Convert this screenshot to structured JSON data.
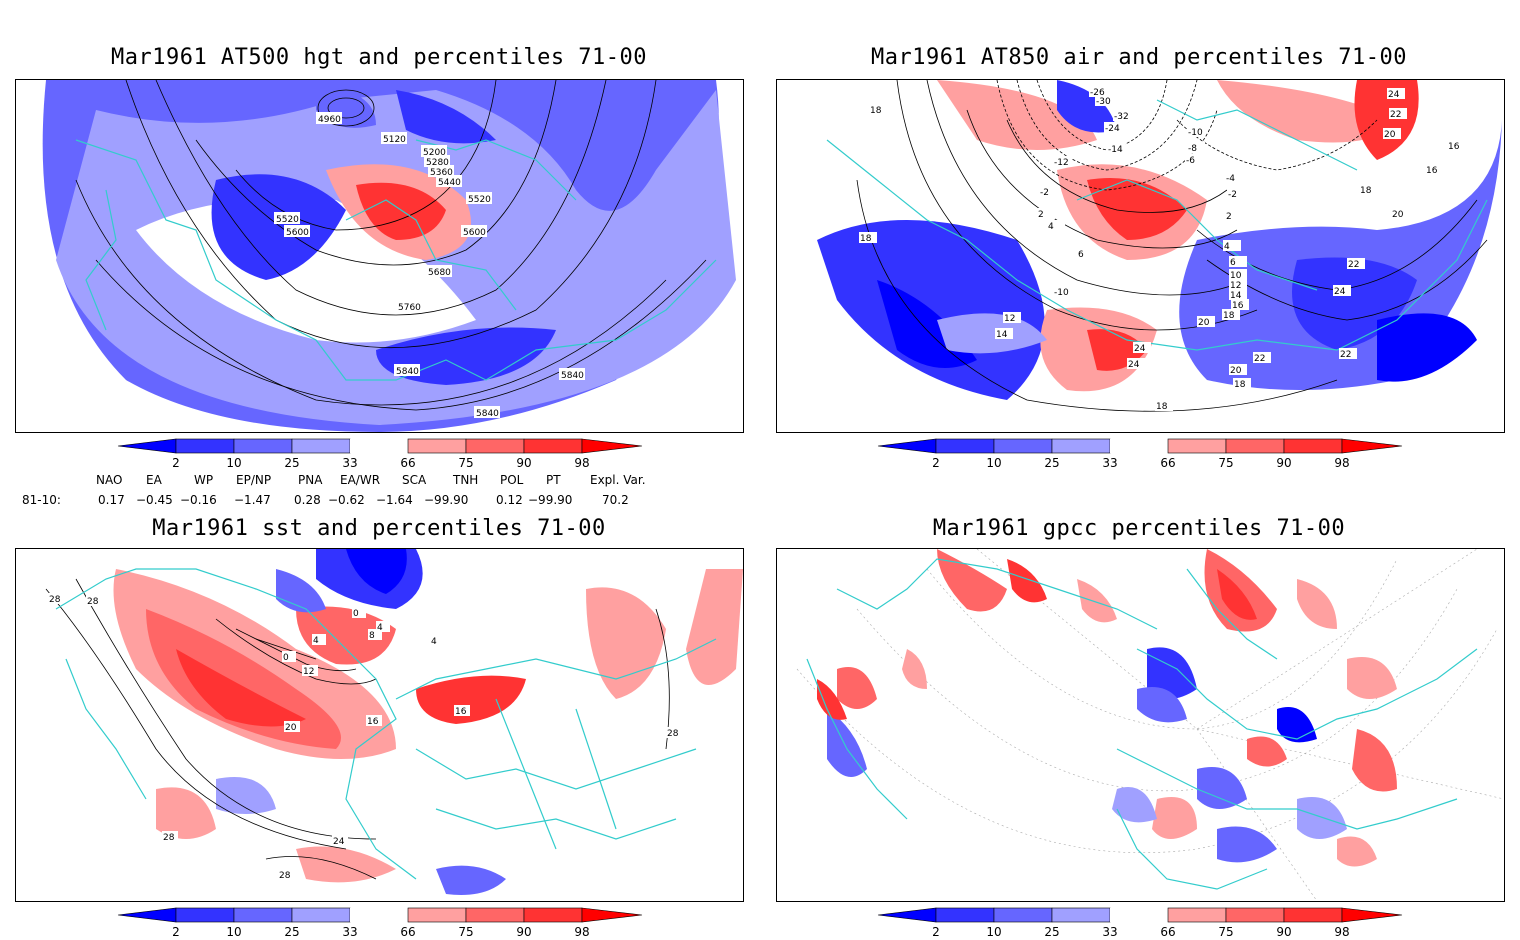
{
  "panels": {
    "p1": {
      "title": "Mar1961 AT500 hgt and percentiles 71-00"
    },
    "p2": {
      "title": "Mar1961 AT850 air and percentiles 71-00"
    },
    "p3": {
      "title": "Mar1961 sst and percentiles 71-00"
    },
    "p4": {
      "title": "Mar1961 gpcc percentiles 71-00"
    }
  },
  "colorbar": {
    "labels": [
      "2",
      "10",
      "25",
      "33",
      "66",
      "75",
      "90",
      "98"
    ],
    "colors": [
      "#0000ff",
      "#3333ff",
      "#6666ff",
      "#a0a0ff",
      "#ffffff",
      "#ffa0a0",
      "#ff6666",
      "#ff3333",
      "#ff0000"
    ]
  },
  "index_table": {
    "headers": [
      "NAO",
      "EA",
      "WP",
      "EP/NP",
      "PNA",
      "EA/WR",
      "SCA",
      "TNH",
      "POL",
      "PT",
      "Expl. Var."
    ],
    "row_label": "81-10:",
    "values": [
      "0.17",
      "−0.45",
      "−0.16",
      "−1.47",
      "0.28",
      "−0.62",
      "−1.64",
      "−99.90",
      "0.12",
      "−99.90",
      "70.2"
    ]
  },
  "contour_labels": {
    "p1": [
      "4960",
      "5120",
      "5200",
      "5280",
      "5360",
      "5440",
      "5520",
      "5520",
      "5600",
      "5600",
      "5680",
      "5760",
      "5840",
      "5840",
      "5840"
    ],
    "p2": [
      "-26",
      "-30",
      "-32",
      "-24",
      "-14",
      "-12",
      "-10",
      "-8",
      "-6",
      "-4",
      "-2",
      "2",
      "4",
      "6",
      "-2",
      "2",
      "4",
      "6",
      "10",
      "12",
      "14",
      "16",
      "18",
      "20",
      "22",
      "24",
      "18",
      "16",
      "16",
      "18",
      "18",
      "20",
      "24",
      "22",
      "20",
      "22",
      "24",
      "18",
      "14",
      "12",
      "-10",
      "18",
      "20",
      "22",
      "24"
    ],
    "p3": [
      "28",
      "28",
      "0",
      "4",
      "8",
      "12",
      "16",
      "20",
      "0",
      "4",
      "4",
      "16",
      "28",
      "28",
      "28",
      "24"
    ]
  }
}
